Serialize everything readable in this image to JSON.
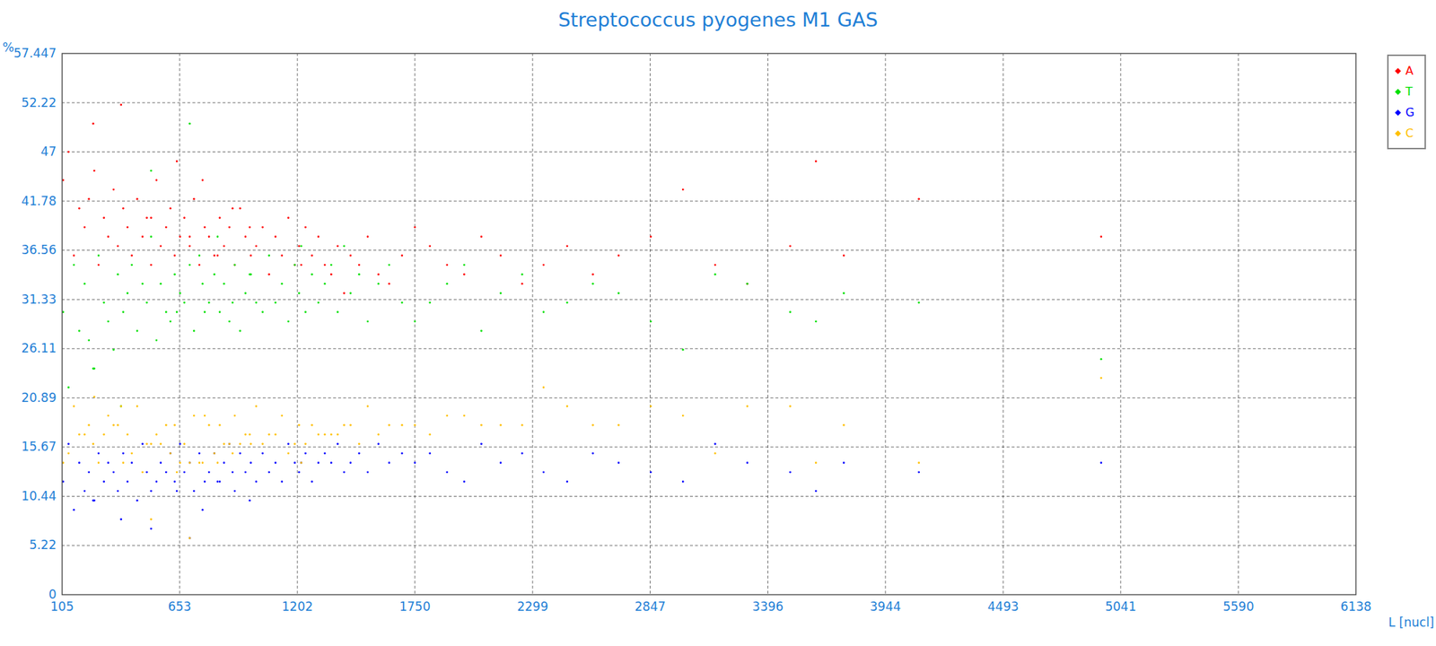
{
  "chart_data": {
    "type": "scatter",
    "title": "Streptococcus pyogenes M1 GAS",
    "x_label": "L [nucl]",
    "y_label": "%",
    "x": [
      110,
      135,
      160,
      185,
      210,
      230,
      255,
      275,
      300,
      320,
      345,
      365,
      390,
      410,
      430,
      455,
      480,
      500,
      520,
      545,
      565,
      590,
      610,
      630,
      655,
      675,
      700,
      720,
      745,
      770,
      790,
      815,
      840,
      860,
      885,
      910,
      935,
      960,
      985,
      1010,
      1040,
      1070,
      1100,
      1130,
      1160,
      1190,
      1210,
      1240,
      1270,
      1300,
      1330,
      1360,
      1390,
      1420,
      1450,
      1490,
      1530,
      1580,
      1630,
      1690,
      1750,
      1820,
      1900,
      1980,
      2060,
      2150,
      2250,
      2350,
      2460,
      2580,
      2700,
      2850,
      3000,
      3150,
      3300,
      3500,
      3620,
      3750,
      4100,
      4950,
      250,
      380,
      520,
      640,
      700,
      760,
      830,
      900,
      980,
      1220
    ],
    "series": [
      {
        "name": "A",
        "color": "#ff0000",
        "values": [
          44,
          47,
          36,
          41,
          39,
          42,
          45,
          35,
          40,
          38,
          43,
          37,
          41,
          39,
          36,
          42,
          38,
          40,
          35,
          44,
          37,
          39,
          41,
          36,
          38,
          40,
          37,
          42,
          35,
          39,
          38,
          36,
          40,
          37,
          39,
          35,
          41,
          38,
          36,
          37,
          39,
          34,
          38,
          36,
          40,
          35,
          37,
          39,
          36,
          38,
          35,
          34,
          37,
          32,
          36,
          35,
          38,
          34,
          33,
          36,
          39,
          37,
          35,
          34,
          38,
          36,
          33,
          35,
          37,
          34,
          36,
          38,
          43,
          35,
          33,
          37,
          46,
          36,
          42,
          38,
          50,
          52,
          40,
          46,
          38,
          44,
          36,
          41,
          39,
          35
        ]
      },
      {
        "name": "T",
        "color": "#00e000",
        "values": [
          30,
          22,
          35,
          28,
          33,
          27,
          24,
          36,
          31,
          29,
          26,
          34,
          30,
          32,
          35,
          28,
          33,
          31,
          38,
          27,
          33,
          30,
          29,
          34,
          32,
          31,
          35,
          28,
          36,
          30,
          31,
          34,
          30,
          33,
          29,
          35,
          28,
          32,
          34,
          31,
          30,
          36,
          31,
          33,
          29,
          35,
          32,
          30,
          34,
          31,
          33,
          35,
          30,
          37,
          32,
          34,
          29,
          33,
          35,
          31,
          29,
          31,
          33,
          35,
          28,
          32,
          34,
          30,
          31,
          33,
          32,
          29,
          26,
          34,
          33,
          30,
          29,
          32,
          31,
          25,
          24,
          20,
          45,
          30,
          50,
          33,
          38,
          31,
          34,
          37
        ]
      },
      {
        "name": "G",
        "color": "#0000ff",
        "values": [
          12,
          16,
          9,
          14,
          11,
          13,
          10,
          15,
          12,
          14,
          13,
          11,
          15,
          12,
          14,
          10,
          16,
          13,
          11,
          12,
          14,
          13,
          15,
          12,
          16,
          13,
          14,
          11,
          15,
          12,
          13,
          15,
          12,
          14,
          16,
          11,
          15,
          13,
          14,
          12,
          15,
          13,
          14,
          12,
          16,
          14,
          13,
          15,
          12,
          14,
          15,
          14,
          16,
          13,
          14,
          15,
          13,
          16,
          14,
          15,
          14,
          15,
          13,
          12,
          16,
          14,
          15,
          13,
          12,
          15,
          14,
          13,
          12,
          16,
          14,
          13,
          11,
          14,
          13,
          14,
          10,
          8,
          7,
          11,
          6,
          9,
          12,
          13,
          10,
          14
        ]
      },
      {
        "name": "C",
        "color": "#ffc000",
        "values": [
          14,
          15,
          20,
          17,
          17,
          18,
          21,
          14,
          17,
          19,
          18,
          18,
          14,
          17,
          15,
          20,
          13,
          16,
          16,
          17,
          16,
          18,
          15,
          18,
          14,
          16,
          14,
          19,
          14,
          19,
          18,
          15,
          18,
          16,
          16,
          19,
          16,
          17,
          16,
          20,
          16,
          17,
          17,
          19,
          15,
          16,
          18,
          16,
          18,
          17,
          17,
          17,
          17,
          18,
          18,
          16,
          20,
          17,
          18,
          18,
          18,
          17,
          19,
          19,
          18,
          18,
          18,
          22,
          20,
          18,
          18,
          20,
          19,
          15,
          20,
          20,
          14,
          18,
          14,
          23,
          16,
          20,
          8,
          13,
          6,
          14,
          14,
          15,
          17,
          14
        ]
      }
    ],
    "xlim": [
      105,
      6138
    ],
    "ylim": [
      0,
      57.447
    ],
    "xticks": [
      105,
      653,
      1202,
      1750,
      2299,
      2847,
      3396,
      3944,
      4493,
      5041,
      5590,
      6138
    ],
    "yticks": [
      0,
      5.22,
      10.44,
      15.67,
      20.89,
      26.11,
      31.33,
      36.56,
      41.78,
      47,
      52.22,
      57.447
    ],
    "grid": true,
    "legend": "top-right"
  }
}
